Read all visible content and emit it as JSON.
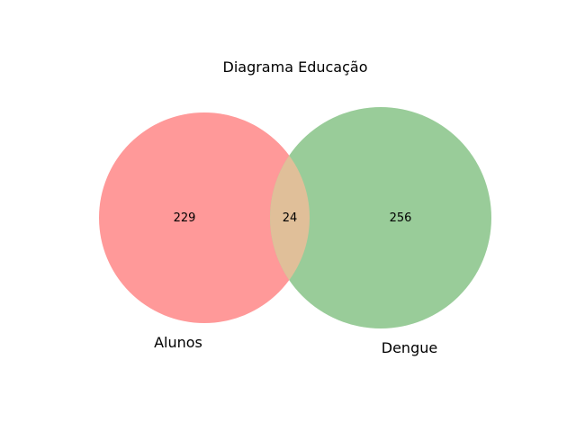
{
  "diagram": {
    "title": "Diagrama Educação",
    "sets": [
      {
        "name": "Alunos",
        "only_count": "229",
        "color": "#ff9999"
      },
      {
        "name": "Dengue",
        "only_count": "256",
        "color": "#99cc99"
      }
    ],
    "intersection": {
      "count": "24",
      "color": "#e0bf99"
    }
  }
}
